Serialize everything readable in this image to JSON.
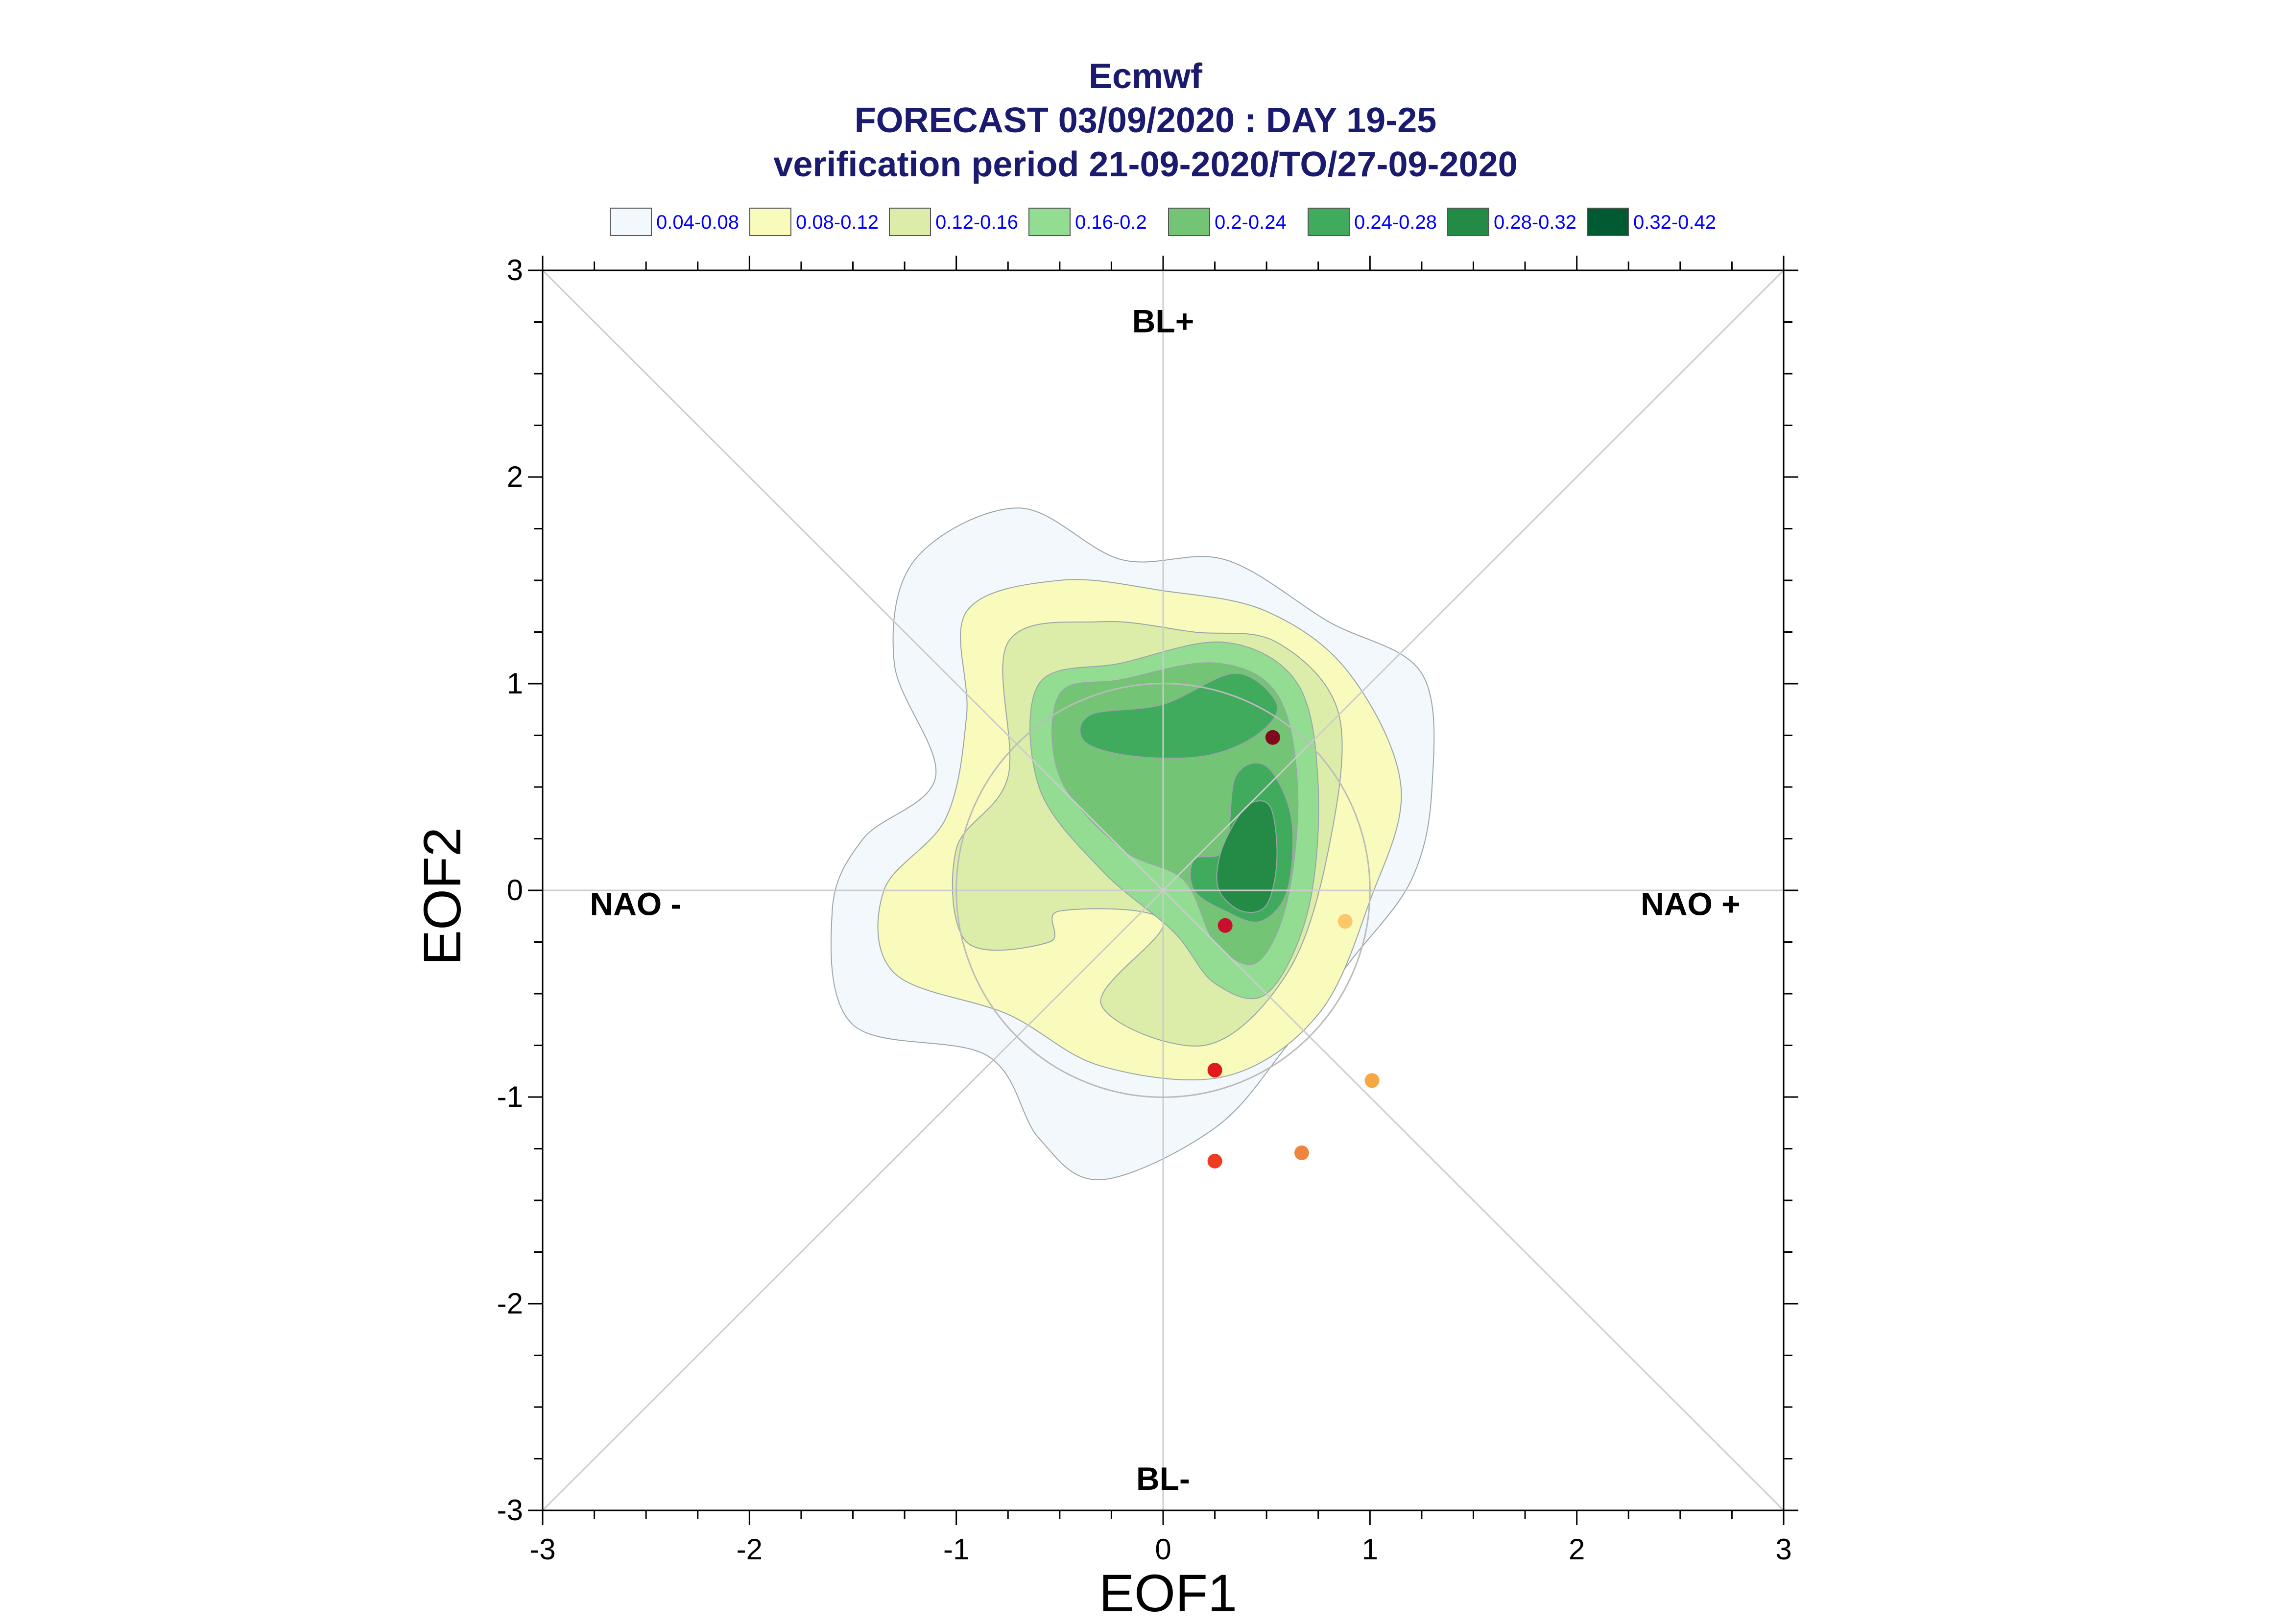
{
  "chart_data": {
    "type": "scatter",
    "title_lines": [
      "Ecmwf",
      "FORECAST 03/09/2020 : DAY 19-25",
      "verification period 21-09-2020/TO/27-09-2020"
    ],
    "xlabel": "EOF1",
    "ylabel": "EOF2",
    "xlim": [
      -3,
      3
    ],
    "ylim": [
      -3,
      3
    ],
    "x_ticks": [
      -3,
      -2,
      -1,
      0,
      1,
      2,
      3
    ],
    "y_ticks": [
      -3,
      -2,
      -1,
      0,
      1,
      2,
      3
    ],
    "x_tick_labels": [
      "-3",
      "-2",
      "-1",
      "0",
      "1",
      "2",
      "3"
    ],
    "y_tick_labels": [
      "-3",
      "-2",
      "-1",
      "0",
      "1",
      "2",
      "3"
    ],
    "legend": {
      "placement": "top",
      "entries": [
        {
          "label": "0.04-0.08",
          "color": "#f3f8fc"
        },
        {
          "label": "0.08-0.12",
          "color": "#f8fbbc"
        },
        {
          "label": "0.12-0.16",
          "color": "#dcedaa"
        },
        {
          "label": "0.16-0.2",
          "color": "#93dd93"
        },
        {
          "label": "0.2-0.24",
          "color": "#74c476"
        },
        {
          "label": "0.24-0.28",
          "color": "#41ab5d"
        },
        {
          "label": "0.28-0.32",
          "color": "#238b45"
        },
        {
          "label": "0.32-0.42",
          "color": "#005a32"
        }
      ]
    },
    "regime_labels": [
      {
        "text": "BL+",
        "x": 0.0,
        "y": 2.7
      },
      {
        "text": "BL-",
        "x": 0.0,
        "y": -2.9
      },
      {
        "text": "NAO -",
        "x": -2.55,
        "y": -0.12
      },
      {
        "text": "NAO +",
        "x": 2.55,
        "y": -0.12
      }
    ],
    "reference_circle": {
      "cx": 0.0,
      "cy": 0.0,
      "r": 1.0
    },
    "density_contours": [
      {
        "level": "0.04-0.08",
        "color": "#f3f8fc",
        "points": [
          [
            -1.2,
            1.6
          ],
          [
            -0.7,
            1.85
          ],
          [
            -0.2,
            1.6
          ],
          [
            0.3,
            1.6
          ],
          [
            0.8,
            1.3
          ],
          [
            1.25,
            1.05
          ],
          [
            1.3,
            0.5
          ],
          [
            1.2,
            0.05
          ],
          [
            0.9,
            -0.35
          ],
          [
            0.6,
            -0.75
          ],
          [
            0.25,
            -1.15
          ],
          [
            -0.3,
            -1.4
          ],
          [
            -0.6,
            -1.2
          ],
          [
            -0.85,
            -0.8
          ],
          [
            -1.5,
            -0.65
          ],
          [
            -1.6,
            -0.1
          ],
          [
            -1.45,
            0.25
          ],
          [
            -1.1,
            0.55
          ],
          [
            -1.3,
            1.1
          ]
        ]
      },
      {
        "level": "0.08-0.12",
        "color": "#f8fbbc",
        "points": [
          [
            -0.95,
            1.35
          ],
          [
            -0.5,
            1.5
          ],
          [
            0,
            1.45
          ],
          [
            0.5,
            1.35
          ],
          [
            0.9,
            1.05
          ],
          [
            1.15,
            0.5
          ],
          [
            1.0,
            -0.05
          ],
          [
            0.75,
            -0.6
          ],
          [
            0.3,
            -0.9
          ],
          [
            -0.3,
            -0.85
          ],
          [
            -0.75,
            -0.6
          ],
          [
            -1.3,
            -0.4
          ],
          [
            -1.35,
            0
          ],
          [
            -1.05,
            0.35
          ],
          [
            -0.95,
            0.85
          ]
        ]
      },
      {
        "level": "0.12-0.16",
        "color": "#dcedaa",
        "points": [
          [
            -0.75,
            1.2
          ],
          [
            -0.3,
            1.3
          ],
          [
            0.15,
            1.25
          ],
          [
            0.55,
            1.2
          ],
          [
            0.85,
            0.85
          ],
          [
            0.8,
            0.2
          ],
          [
            0.6,
            -0.4
          ],
          [
            0.2,
            -0.75
          ],
          [
            -0.3,
            -0.55
          ],
          [
            0,
            -0.15
          ],
          [
            -0.5,
            -0.1
          ],
          [
            -0.55,
            -0.25
          ],
          [
            -0.95,
            -0.25
          ],
          [
            -1.0,
            0.2
          ],
          [
            -0.75,
            0.55
          ]
        ]
      },
      {
        "level": "0.16-0.2",
        "color": "#93dd93",
        "points": [
          [
            -0.6,
            1.0
          ],
          [
            -0.2,
            1.1
          ],
          [
            0.3,
            1.2
          ],
          [
            0.65,
            1.0
          ],
          [
            0.75,
            0.5
          ],
          [
            0.7,
            -0.1
          ],
          [
            0.5,
            -0.5
          ],
          [
            0.25,
            -0.45
          ],
          [
            0.05,
            -0.2
          ],
          [
            -0.3,
            0.1
          ],
          [
            -0.6,
            0.5
          ]
        ]
      },
      {
        "level": "0.2-0.24",
        "color": "#74c476",
        "points": [
          [
            -0.5,
            0.95
          ],
          [
            -0.2,
            1.02
          ],
          [
            0.25,
            1.1
          ],
          [
            0.55,
            0.95
          ],
          [
            0.65,
            0.5
          ],
          [
            0.6,
            -0.05
          ],
          [
            0.45,
            -0.35
          ],
          [
            0.25,
            -0.25
          ],
          [
            0.1,
            0.05
          ],
          [
            -0.2,
            0.2
          ],
          [
            -0.5,
            0.55
          ]
        ]
      },
      {
        "level": "0.24-0.28",
        "color": "#41ab5d",
        "points": [
          [
            -0.35,
            0.85
          ],
          [
            0,
            0.9
          ],
          [
            0.35,
            1.05
          ],
          [
            0.55,
            0.9
          ],
          [
            0.45,
            0.75
          ],
          [
            0.2,
            0.65
          ],
          [
            -0.15,
            0.65
          ],
          [
            -0.38,
            0.72
          ]
        ]
      },
      {
        "level": "0.24-0.28",
        "color": "#41ab5d",
        "points": [
          [
            0.35,
            0.55
          ],
          [
            0.5,
            0.6
          ],
          [
            0.62,
            0.35
          ],
          [
            0.6,
            0.0
          ],
          [
            0.47,
            -0.15
          ],
          [
            0.3,
            -0.1
          ],
          [
            0.15,
            0.0
          ],
          [
            0.15,
            0.15
          ],
          [
            0.3,
            0.2
          ]
        ]
      },
      {
        "level": "0.28-0.32",
        "color": "#238b45",
        "points": [
          [
            0.42,
            0.42
          ],
          [
            0.52,
            0.4
          ],
          [
            0.55,
            0.15
          ],
          [
            0.5,
            -0.07
          ],
          [
            0.38,
            -0.1
          ],
          [
            0.27,
            0.0
          ],
          [
            0.27,
            0.15
          ],
          [
            0.33,
            0.3
          ]
        ]
      }
    ],
    "points": [
      {
        "x": 0.53,
        "y": 0.74,
        "color": "#7f0a1e"
      },
      {
        "x": 0.3,
        "y": -0.17,
        "color": "#c8102e"
      },
      {
        "x": 0.25,
        "y": -0.87,
        "color": "#e31a1c"
      },
      {
        "x": 0.25,
        "y": -1.31,
        "color": "#f03b20"
      },
      {
        "x": 0.67,
        "y": -1.27,
        "color": "#f0853f"
      },
      {
        "x": 1.01,
        "y": -0.92,
        "color": "#f5a742"
      },
      {
        "x": 0.88,
        "y": -0.15,
        "color": "#fdc76a"
      }
    ],
    "grid": false,
    "colors": {
      "title": "#1a1a6e",
      "legend_text": "#0000ff",
      "guide_lines": "#cccccc",
      "axes": "#000000"
    }
  }
}
